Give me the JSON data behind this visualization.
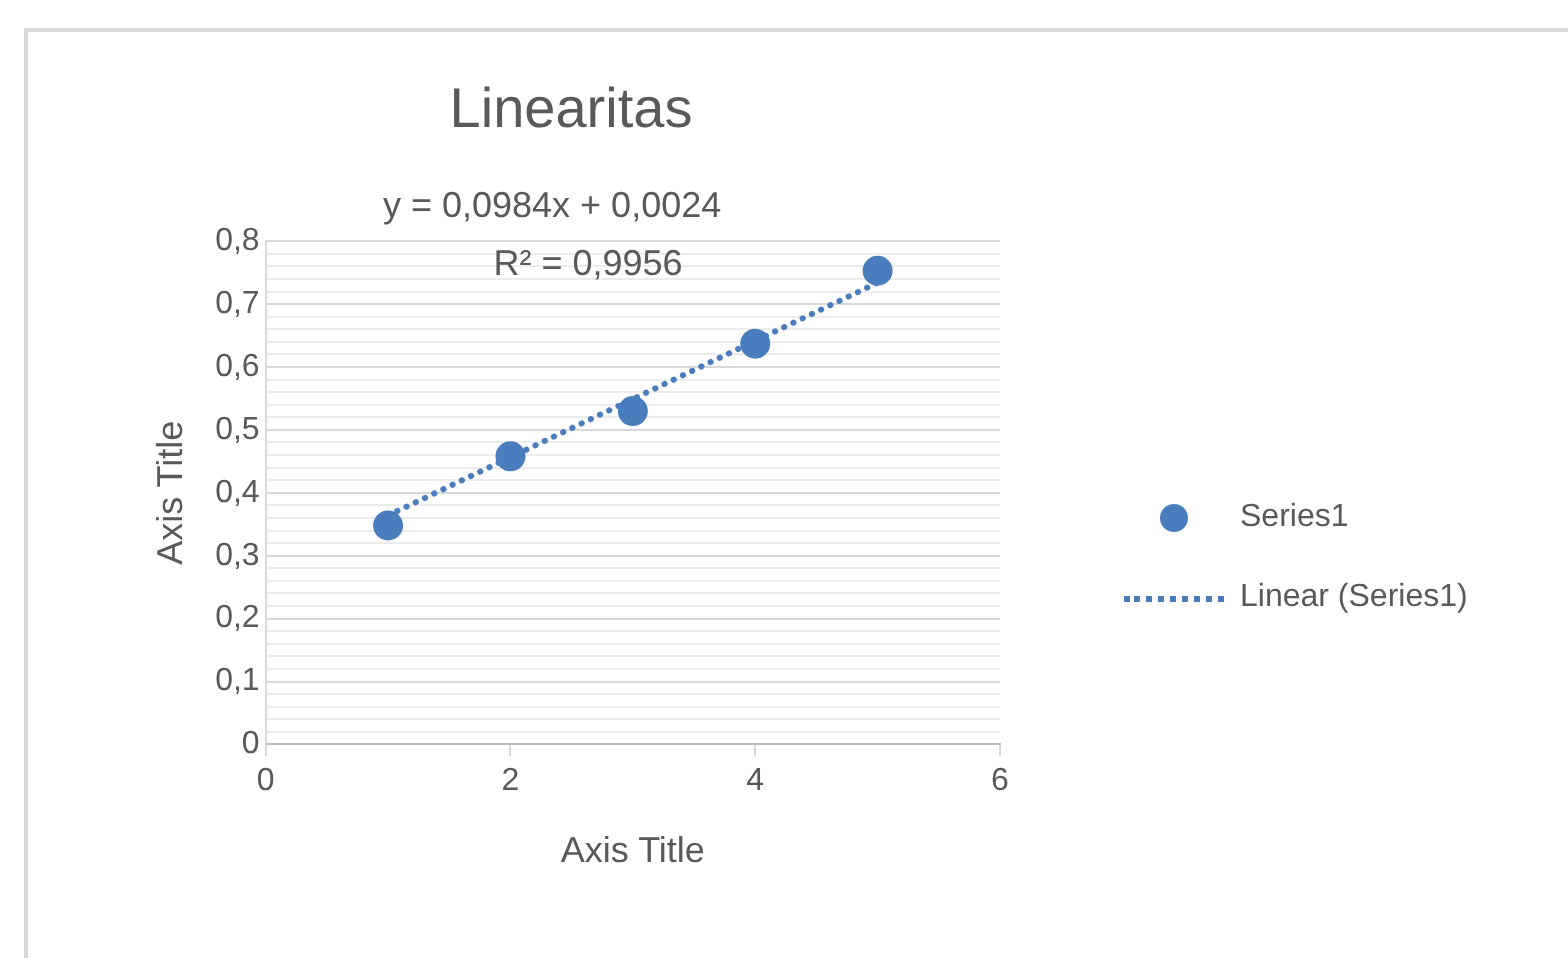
{
  "chart_data": {
    "type": "scatter",
    "title": "Linearitas",
    "xlabel": "Axis Title",
    "ylabel": "Axis Title",
    "annotations": [
      "y = 0,0984x + 0,0024",
      "R² = 0,9956"
    ],
    "xlim": [
      0,
      6
    ],
    "xticks": [
      0,
      2,
      4,
      6
    ],
    "ylim": [
      0,
      0.8
    ],
    "yticks": [
      {
        "value": 0,
        "label": "0"
      },
      {
        "value": 0.02,
        "label": null
      },
      {
        "value": 0.04,
        "label": null
      },
      {
        "value": 0.06,
        "label": null
      },
      {
        "value": 0.08,
        "label": null
      },
      {
        "value": 0.1,
        "label": "0,1"
      },
      {
        "value": 0.12,
        "label": null
      },
      {
        "value": 0.14,
        "label": null
      },
      {
        "value": 0.16,
        "label": null
      },
      {
        "value": 0.18,
        "label": null
      },
      {
        "value": 0.2,
        "label": "0,2"
      },
      {
        "value": 0.22,
        "label": null
      },
      {
        "value": 0.24,
        "label": null
      },
      {
        "value": 0.26,
        "label": null
      },
      {
        "value": 0.28,
        "label": null
      },
      {
        "value": 0.3,
        "label": "0,3"
      },
      {
        "value": 0.32,
        "label": null
      },
      {
        "value": 0.34,
        "label": null
      },
      {
        "value": 0.36,
        "label": null
      },
      {
        "value": 0.38,
        "label": null
      },
      {
        "value": 0.4,
        "label": "0,4"
      },
      {
        "value": 0.42,
        "label": null
      },
      {
        "value": 0.44,
        "label": null
      },
      {
        "value": 0.46,
        "label": null
      },
      {
        "value": 0.48,
        "label": null
      },
      {
        "value": 0.5,
        "label": "0,5"
      },
      {
        "value": 0.52,
        "label": null
      },
      {
        "value": 0.54,
        "label": null
      },
      {
        "value": 0.56,
        "label": null
      },
      {
        "value": 0.58,
        "label": null
      },
      {
        "value": 0.6,
        "label": "0,6"
      },
      {
        "value": 0.62,
        "label": null
      },
      {
        "value": 0.64,
        "label": null
      },
      {
        "value": 0.66,
        "label": null
      },
      {
        "value": 0.68,
        "label": null
      },
      {
        "value": 0.7,
        "label": "0,7"
      },
      {
        "value": 0.72,
        "label": null
      },
      {
        "value": 0.74,
        "label": null
      },
      {
        "value": 0.76,
        "label": null
      },
      {
        "value": 0.78,
        "label": null
      },
      {
        "value": 0.8,
        "label": "0,8"
      }
    ],
    "grid": "y",
    "legend": "right",
    "series": [
      {
        "name": "Series1",
        "type": "scatter",
        "color": "#4a7dbd",
        "marker": "circle",
        "x": [
          1,
          2,
          3,
          4,
          5
        ],
        "values": [
          0.348,
          0.458,
          0.53,
          0.637,
          0.753
        ]
      },
      {
        "name": "Linear (Series1)",
        "type": "line",
        "color": "#4a7dbd",
        "marker": "none",
        "line_style": "dotted",
        "x": [
          1,
          5
        ],
        "values": [
          0.364,
          0.734
        ]
      }
    ]
  }
}
